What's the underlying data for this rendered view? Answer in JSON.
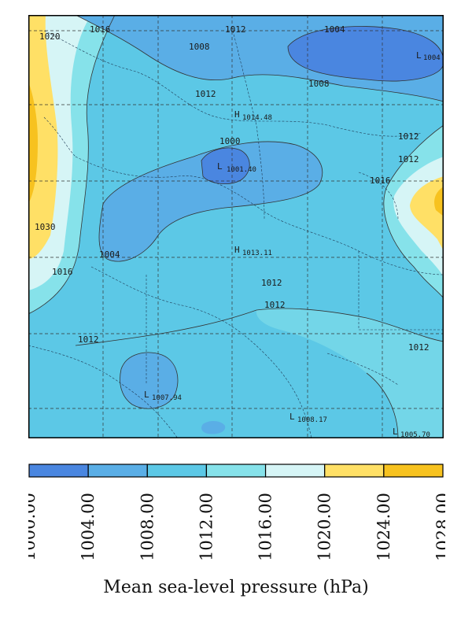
{
  "map": {
    "contour_labels": [
      "1020",
      "1016",
      "1012",
      "1008",
      "1004",
      "1012",
      "1008",
      "1012",
      "1012",
      "1016",
      "1000",
      "1012",
      "1030",
      "1016",
      "1012",
      "1012",
      "1012",
      "1004"
    ],
    "centers": [
      {
        "letter": "L",
        "value": "1004"
      },
      {
        "letter": "H",
        "value": "1014.48"
      },
      {
        "letter": "L",
        "value": "1001.40"
      },
      {
        "letter": "H",
        "value": "1013.11"
      },
      {
        "letter": "L",
        "value": "1007.94"
      },
      {
        "letter": "L",
        "value": "1008.17"
      },
      {
        "letter": "L",
        "value": "1005.70"
      }
    ]
  },
  "colorbar": {
    "bins": [
      {
        "color": "#4a86e0"
      },
      {
        "color": "#5aaee6"
      },
      {
        "color": "#5cc8e6"
      },
      {
        "color": "#86e2ea"
      },
      {
        "color": "#d6f5f6"
      },
      {
        "color": "#ffe066"
      },
      {
        "color": "#f7c21f"
      }
    ],
    "tick_labels": [
      "1000.00",
      "1004.00",
      "1008.00",
      "1012.00",
      "1016.00",
      "1020.00",
      "1024.00",
      "1028.00"
    ]
  },
  "caption": "Mean sea-level pressure (hPa)"
}
